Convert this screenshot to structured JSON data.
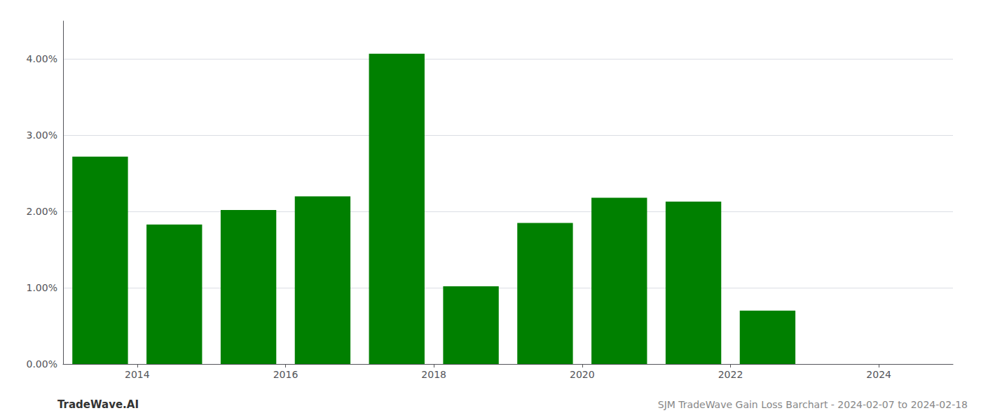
{
  "chart_data": {
    "type": "bar",
    "title": "SJM TradeWave Gain Loss Barchart - 2024-02-07 to 2024-02-18",
    "annotations": [
      "TradeWave.AI"
    ],
    "x": [
      2013.5,
      2014.5,
      2015.5,
      2016.5,
      2017.5,
      2018.5,
      2019.5,
      2020.5,
      2021.5,
      2022.5,
      2023.5
    ],
    "values": [
      0.0272,
      0.0183,
      0.0202,
      0.022,
      0.0407,
      0.0102,
      0.0185,
      0.0218,
      0.0213,
      0.007,
      0.0
    ],
    "color": "#008000",
    "xlim": [
      2013.0,
      2025.0
    ],
    "xticks": [
      2014,
      2016,
      2018,
      2020,
      2022,
      2024
    ],
    "ylim": [
      0,
      0.045
    ],
    "yticks": [
      {
        "value": 0.0,
        "label": "0.00%"
      },
      {
        "value": 0.01,
        "label": "1.00%"
      },
      {
        "value": 0.02,
        "label": "2.00%"
      },
      {
        "value": 0.03,
        "label": "3.00%"
      },
      {
        "value": 0.04,
        "label": "4.00%"
      }
    ],
    "grid": true
  }
}
